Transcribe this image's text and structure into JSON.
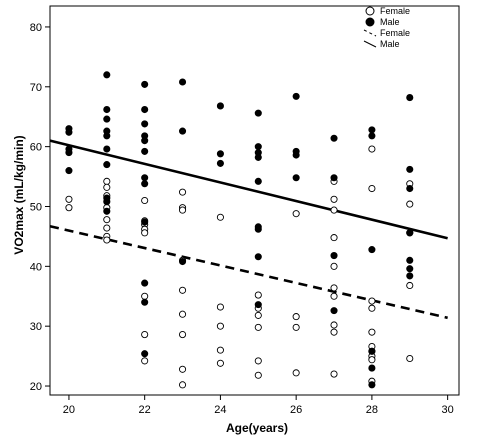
{
  "chart_data": {
    "type": "scatter",
    "title": "",
    "xlabel": "Age(years)",
    "ylabel": "VO2max (mL/kg/min)",
    "xlim": [
      19.5,
      30.3
    ],
    "ylim": [
      18.5,
      83.5
    ],
    "xticks": [
      20,
      22,
      24,
      26,
      28,
      30
    ],
    "yticks": [
      20,
      30,
      40,
      50,
      60,
      70,
      80
    ],
    "grid": false,
    "legend_position": "top-right",
    "legend": [
      {
        "label": "Female",
        "marker": "open-circle"
      },
      {
        "label": "Male",
        "marker": "filled-circle"
      },
      {
        "label": "Female",
        "line": "dashed"
      },
      {
        "label": "Male",
        "line": "solid"
      }
    ],
    "series": [
      {
        "name": "Female",
        "marker": "open-circle",
        "points": [
          [
            20,
            51.2
          ],
          [
            20,
            49.8
          ],
          [
            21,
            54.2
          ],
          [
            21,
            53.2
          ],
          [
            21,
            51.8
          ],
          [
            21,
            49.8
          ],
          [
            21,
            47.8
          ],
          [
            21,
            46.4
          ],
          [
            21,
            45.0
          ],
          [
            21,
            44.4
          ],
          [
            22,
            51.0
          ],
          [
            22,
            47.6
          ],
          [
            22,
            47.0
          ],
          [
            22,
            46.2
          ],
          [
            22,
            45.6
          ],
          [
            22,
            35.0
          ],
          [
            22,
            28.6
          ],
          [
            22,
            24.2
          ],
          [
            23,
            52.4
          ],
          [
            23,
            49.8
          ],
          [
            23,
            49.4
          ],
          [
            23,
            41.0
          ],
          [
            23,
            36.0
          ],
          [
            23,
            32.0
          ],
          [
            23,
            28.6
          ],
          [
            23,
            22.8
          ],
          [
            23,
            20.2
          ],
          [
            24,
            48.2
          ],
          [
            24,
            33.2
          ],
          [
            24,
            30.0
          ],
          [
            24,
            26.0
          ],
          [
            24,
            23.8
          ],
          [
            25,
            35.2
          ],
          [
            25,
            33.0
          ],
          [
            25,
            31.8
          ],
          [
            25,
            29.8
          ],
          [
            25,
            24.2
          ],
          [
            25,
            21.8
          ],
          [
            26,
            48.8
          ],
          [
            26,
            31.6
          ],
          [
            26,
            29.8
          ],
          [
            26,
            22.2
          ],
          [
            27,
            54.2
          ],
          [
            27,
            51.2
          ],
          [
            27,
            49.4
          ],
          [
            27,
            44.8
          ],
          [
            27,
            40.0
          ],
          [
            27,
            36.4
          ],
          [
            27,
            35.0
          ],
          [
            27,
            30.2
          ],
          [
            27,
            29.0
          ],
          [
            27,
            22.0
          ],
          [
            28,
            59.6
          ],
          [
            28,
            53.0
          ],
          [
            28,
            34.2
          ],
          [
            28,
            33.0
          ],
          [
            28,
            29.0
          ],
          [
            28,
            26.6
          ],
          [
            28,
            25.8
          ],
          [
            28,
            25.0
          ],
          [
            28,
            24.4
          ],
          [
            28,
            20.8
          ],
          [
            29,
            53.8
          ],
          [
            29,
            50.4
          ],
          [
            29,
            45.6
          ],
          [
            29,
            36.8
          ],
          [
            29,
            24.6
          ]
        ]
      },
      {
        "name": "Male",
        "marker": "filled-circle",
        "points": [
          [
            20,
            63.0
          ],
          [
            20,
            62.4
          ],
          [
            20,
            59.6
          ],
          [
            20,
            59.0
          ],
          [
            20,
            56.0
          ],
          [
            21,
            72.0
          ],
          [
            21,
            66.2
          ],
          [
            21,
            64.6
          ],
          [
            21,
            62.6
          ],
          [
            21,
            61.8
          ],
          [
            21,
            59.6
          ],
          [
            21,
            57.0
          ],
          [
            21,
            51.4
          ],
          [
            21,
            50.8
          ],
          [
            21,
            49.2
          ],
          [
            22,
            70.4
          ],
          [
            22,
            66.2
          ],
          [
            22,
            63.8
          ],
          [
            22,
            61.8
          ],
          [
            22,
            61.0
          ],
          [
            22,
            59.2
          ],
          [
            22,
            54.8
          ],
          [
            22,
            53.8
          ],
          [
            22,
            47.4
          ],
          [
            22,
            37.2
          ],
          [
            22,
            34.0
          ],
          [
            22,
            25.4
          ],
          [
            23,
            70.8
          ],
          [
            23,
            62.6
          ],
          [
            23,
            40.8
          ],
          [
            24,
            66.8
          ],
          [
            24,
            58.8
          ],
          [
            24,
            57.2
          ],
          [
            25,
            65.6
          ],
          [
            25,
            60.0
          ],
          [
            25,
            59.0
          ],
          [
            25,
            58.2
          ],
          [
            25,
            54.2
          ],
          [
            25,
            46.6
          ],
          [
            25,
            46.2
          ],
          [
            25,
            41.6
          ],
          [
            25,
            33.6
          ],
          [
            26,
            68.4
          ],
          [
            26,
            59.2
          ],
          [
            26,
            58.6
          ],
          [
            26,
            54.8
          ],
          [
            27,
            61.4
          ],
          [
            27,
            54.8
          ],
          [
            27,
            41.8
          ],
          [
            27,
            32.6
          ],
          [
            28,
            62.8
          ],
          [
            28,
            61.8
          ],
          [
            28,
            42.8
          ],
          [
            28,
            25.8
          ],
          [
            28,
            23.0
          ],
          [
            28,
            20.2
          ],
          [
            29,
            68.2
          ],
          [
            29,
            56.2
          ],
          [
            29,
            53.0
          ],
          [
            29,
            45.6
          ],
          [
            29,
            41.0
          ],
          [
            29,
            39.6
          ],
          [
            29,
            38.4
          ]
        ]
      }
    ],
    "fit_lines": [
      {
        "name": "Female",
        "style": "dashed",
        "x": [
          19.5,
          30.0
        ],
        "y": [
          46.7,
          31.4
        ]
      },
      {
        "name": "Male",
        "style": "solid",
        "x": [
          19.5,
          30.0
        ],
        "y": [
          61.0,
          44.7
        ]
      }
    ]
  }
}
